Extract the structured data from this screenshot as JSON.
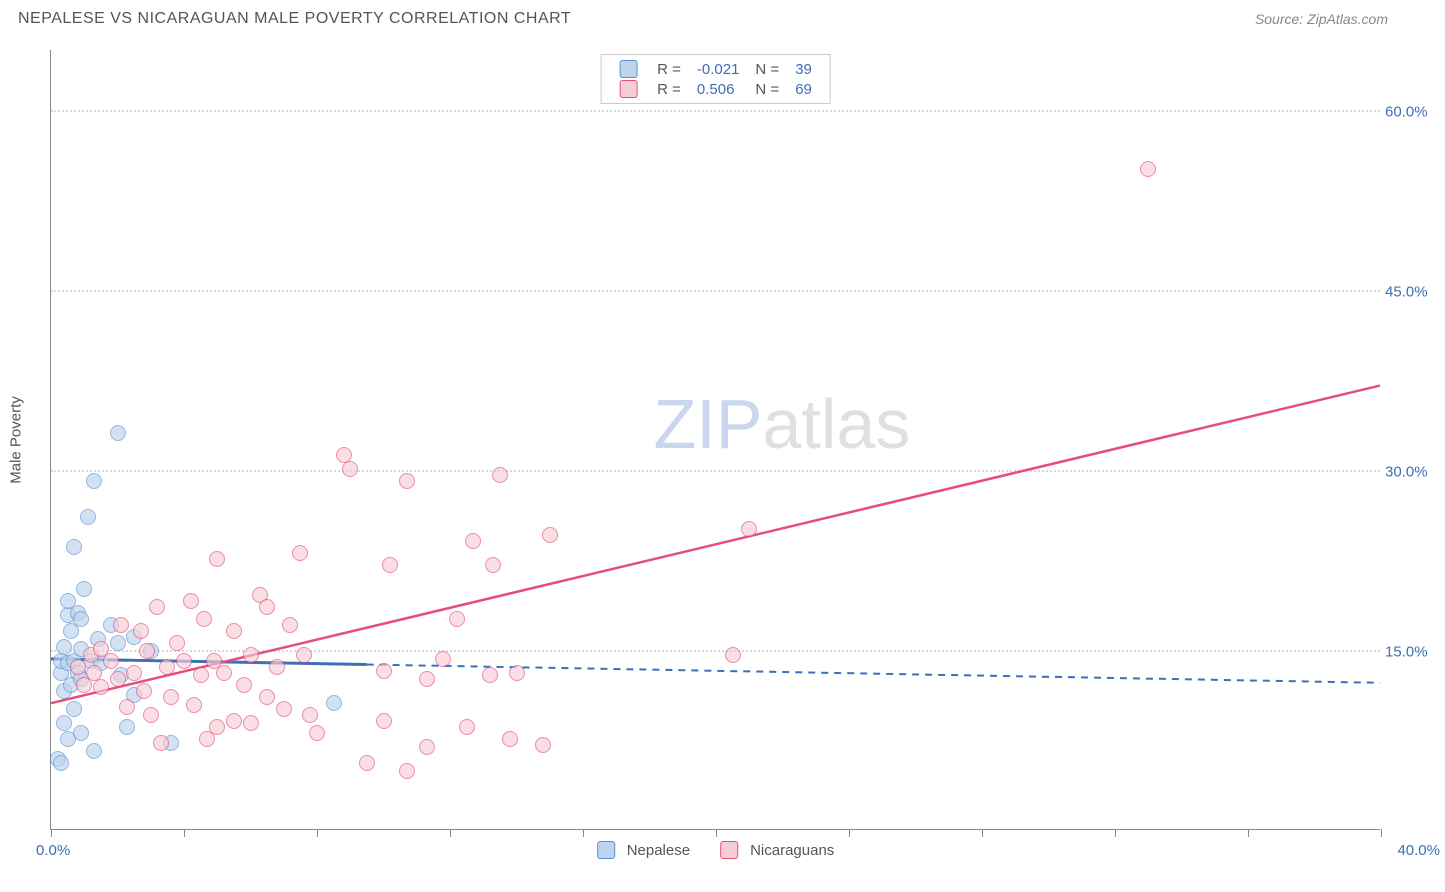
{
  "header": {
    "title": "NEPALESE VS NICARAGUAN MALE POVERTY CORRELATION CHART",
    "source": "Source: ZipAtlas.com"
  },
  "chart": {
    "type": "scatter",
    "yaxis_title": "Male Poverty",
    "background_color": "#ffffff",
    "grid_color": "#d8d8d8",
    "axis_color": "#888888",
    "xlim": [
      0,
      40
    ],
    "ylim": [
      0,
      65
    ],
    "xticks": [
      0,
      4,
      8,
      12,
      16,
      20,
      24,
      28,
      32,
      36,
      40
    ],
    "xtick_labels": {
      "start": "0.0%",
      "end": "40.0%"
    },
    "yticks": [
      {
        "value": 15,
        "label": "15.0%"
      },
      {
        "value": 30,
        "label": "30.0%"
      },
      {
        "value": 45,
        "label": "45.0%"
      },
      {
        "value": 60,
        "label": "60.0%"
      }
    ],
    "watermark": {
      "zip_color": "#c8d7ec",
      "atlas_color": "#e0e0e0",
      "zip": "ZIP",
      "atlas": "atlas"
    },
    "series": [
      {
        "name": "Nepalese",
        "fill_color": "#bcd4ee",
        "stroke_color": "#5a8fd0",
        "legend_swatch_fill": "#bcd4ee",
        "legend_swatch_stroke": "#5a8fd0",
        "R": "-0.021",
        "N": "39",
        "trend": {
          "x1": 0,
          "y1": 14.2,
          "x2": 40,
          "y2": 12.2,
          "color": "#3b6fb6",
          "width": 2,
          "dash_after_x": 9.5,
          "solid_width_before": 3
        },
        "points": [
          [
            0.3,
            13.0
          ],
          [
            0.3,
            14.0
          ],
          [
            0.4,
            11.5
          ],
          [
            0.4,
            15.2
          ],
          [
            0.5,
            17.8
          ],
          [
            0.5,
            19.0
          ],
          [
            0.5,
            7.5
          ],
          [
            0.5,
            13.8
          ],
          [
            0.6,
            16.5
          ],
          [
            0.6,
            12.0
          ],
          [
            0.7,
            23.5
          ],
          [
            0.7,
            14.0
          ],
          [
            0.7,
            10.0
          ],
          [
            0.8,
            18.0
          ],
          [
            0.8,
            13.0
          ],
          [
            0.9,
            15.0
          ],
          [
            0.9,
            12.5
          ],
          [
            0.9,
            8.0
          ],
          [
            1.0,
            20.0
          ],
          [
            1.1,
            26.0
          ],
          [
            1.2,
            14.0
          ],
          [
            1.3,
            6.5
          ],
          [
            1.3,
            29.0
          ],
          [
            1.5,
            13.8
          ],
          [
            1.8,
            17.0
          ],
          [
            2.0,
            15.5
          ],
          [
            2.0,
            33.0
          ],
          [
            2.1,
            12.8
          ],
          [
            2.3,
            8.5
          ],
          [
            2.5,
            16.0
          ],
          [
            2.5,
            11.2
          ],
          [
            3.0,
            14.8
          ],
          [
            3.6,
            7.2
          ],
          [
            0.2,
            5.8
          ],
          [
            0.3,
            5.5
          ],
          [
            1.4,
            15.8
          ],
          [
            0.9,
            17.5
          ],
          [
            0.4,
            8.8
          ],
          [
            8.5,
            10.5
          ]
        ]
      },
      {
        "name": "Nicaraguans",
        "fill_color": "#f6cdd7",
        "stroke_color": "#e54d7a",
        "legend_swatch_fill": "#f6cdd7",
        "legend_swatch_stroke": "#e54d7a",
        "R": "0.506",
        "N": "69",
        "trend": {
          "x1": 0,
          "y1": 10.5,
          "x2": 40,
          "y2": 37.0,
          "color": "#e54d7a",
          "width": 2.5,
          "dash_after_x": 40,
          "solid_width_before": 2.5
        },
        "points": [
          [
            0.8,
            13.5
          ],
          [
            1.0,
            12.0
          ],
          [
            1.2,
            14.5
          ],
          [
            1.3,
            13.0
          ],
          [
            1.5,
            11.8
          ],
          [
            1.5,
            15.0
          ],
          [
            1.8,
            14.0
          ],
          [
            2.0,
            12.5
          ],
          [
            2.1,
            17.0
          ],
          [
            2.3,
            10.2
          ],
          [
            2.5,
            13.0
          ],
          [
            2.7,
            16.5
          ],
          [
            2.8,
            11.5
          ],
          [
            2.9,
            14.8
          ],
          [
            3.0,
            9.5
          ],
          [
            3.2,
            18.5
          ],
          [
            3.5,
            13.5
          ],
          [
            3.6,
            11.0
          ],
          [
            3.8,
            15.5
          ],
          [
            4.0,
            14.0
          ],
          [
            4.2,
            19.0
          ],
          [
            4.3,
            10.3
          ],
          [
            4.5,
            12.8
          ],
          [
            4.6,
            17.5
          ],
          [
            4.9,
            14.0
          ],
          [
            5.0,
            22.5
          ],
          [
            5.0,
            8.5
          ],
          [
            5.2,
            13.0
          ],
          [
            5.5,
            9.0
          ],
          [
            5.5,
            16.5
          ],
          [
            5.8,
            12.0
          ],
          [
            6.0,
            14.5
          ],
          [
            6.3,
            19.5
          ],
          [
            6.5,
            18.5
          ],
          [
            6.5,
            11.0
          ],
          [
            6.8,
            13.5
          ],
          [
            7.0,
            10.0
          ],
          [
            7.2,
            17.0
          ],
          [
            7.5,
            23.0
          ],
          [
            7.6,
            14.5
          ],
          [
            7.8,
            9.5
          ],
          [
            8.0,
            8.0
          ],
          [
            8.8,
            31.2
          ],
          [
            9.0,
            30.0
          ],
          [
            9.5,
            5.5
          ],
          [
            10.0,
            13.2
          ],
          [
            10.0,
            9.0
          ],
          [
            10.2,
            22.0
          ],
          [
            10.7,
            29.0
          ],
          [
            10.7,
            4.8
          ],
          [
            11.3,
            12.5
          ],
          [
            11.3,
            6.8
          ],
          [
            11.8,
            14.2
          ],
          [
            12.2,
            17.5
          ],
          [
            12.5,
            8.5
          ],
          [
            12.7,
            24.0
          ],
          [
            13.2,
            12.8
          ],
          [
            13.3,
            22.0
          ],
          [
            13.5,
            29.5
          ],
          [
            13.8,
            7.5
          ],
          [
            14.0,
            13.0
          ],
          [
            14.8,
            7.0
          ],
          [
            15.0,
            24.5
          ],
          [
            20.5,
            14.5
          ],
          [
            21.0,
            25.0
          ],
          [
            33.0,
            55.0
          ],
          [
            4.7,
            7.5
          ],
          [
            3.3,
            7.2
          ],
          [
            6.0,
            8.8
          ]
        ]
      }
    ],
    "legend_bottom": [
      {
        "label": "Nepalese",
        "fill": "#bcd4ee",
        "stroke": "#5a8fd0"
      },
      {
        "label": "Nicaraguans",
        "fill": "#f6cdd7",
        "stroke": "#e54d7a"
      }
    ],
    "label_color": "#3b6fb6",
    "text_color": "#555555",
    "point_radius": 8
  }
}
